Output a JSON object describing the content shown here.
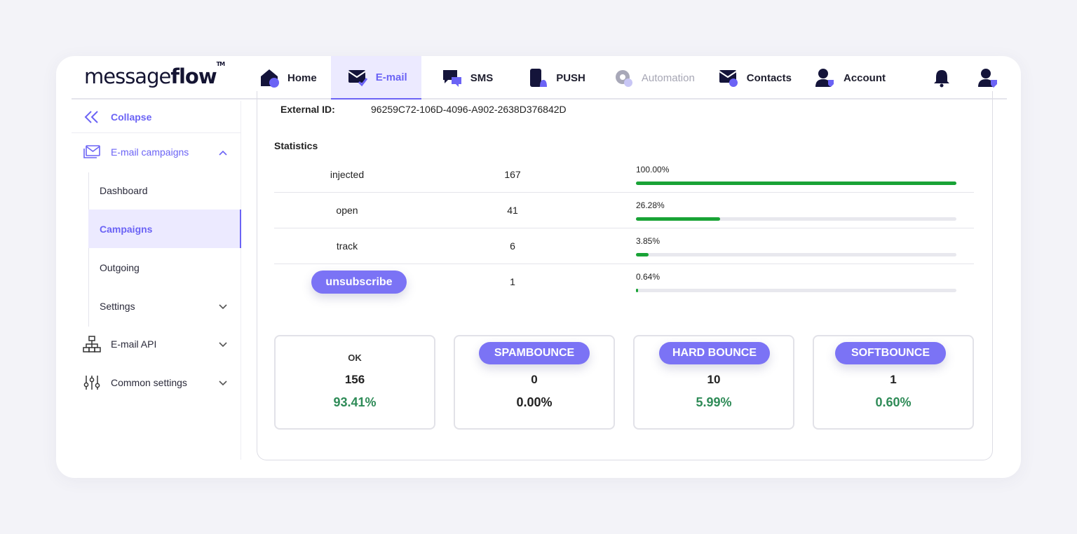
{
  "header": {
    "logo_light": "message",
    "logo_bold": "flow",
    "logo_tm": "TM",
    "nav": [
      {
        "label": "Home",
        "icon": "home-icon"
      },
      {
        "label": "E-mail",
        "icon": "email-icon"
      },
      {
        "label": "SMS",
        "icon": "sms-icon"
      },
      {
        "label": "PUSH",
        "icon": "push-icon"
      },
      {
        "label": "Automation",
        "icon": "automation-icon"
      },
      {
        "label": "Contacts",
        "icon": "contacts-icon"
      },
      {
        "label": "Account",
        "icon": "account-icon"
      }
    ],
    "active_nav": "E-mail"
  },
  "sidebar": {
    "collapse_label": "Collapse",
    "email_campaigns_label": "E-mail campaigns",
    "sub_items": [
      "Dashboard",
      "Campaigns",
      "Outgoing",
      "Settings"
    ],
    "active_sub": "Campaigns",
    "email_api_label": "E-mail API",
    "common_settings_label": "Common settings"
  },
  "main": {
    "external_id_label": "External ID:",
    "external_id_value": "96259C72-106D-4096-A902-2638D376842D",
    "statistics_title": "Statistics",
    "stats": [
      {
        "name": "injected",
        "count": "167",
        "percent_label": "100.00%",
        "percent": 100.0
      },
      {
        "name": "open",
        "count": "41",
        "percent_label": "26.28%",
        "percent": 26.28
      },
      {
        "name": "track",
        "count": "6",
        "percent_label": "3.85%",
        "percent": 3.85
      },
      {
        "name": "unsubscribe",
        "count": "1",
        "percent_label": "0.64%",
        "percent": 0.64
      }
    ],
    "highlight_pill": "unsubscribe",
    "boxes": [
      {
        "label": "OK",
        "count": "156",
        "percent": "93.41%"
      },
      {
        "label": "SPAMBOUNCE",
        "count": "0",
        "percent": "0.00%"
      },
      {
        "label": "HARD BOUNCE",
        "count": "10",
        "percent": "5.99%"
      },
      {
        "label": "SOFTBOUNCE",
        "count": "1",
        "percent": "0.60%"
      }
    ]
  },
  "colors": {
    "accent": "#6b63f5",
    "pill": "#7b73f5",
    "bar": "#19a336",
    "positive_pct": "#2e8b57"
  }
}
